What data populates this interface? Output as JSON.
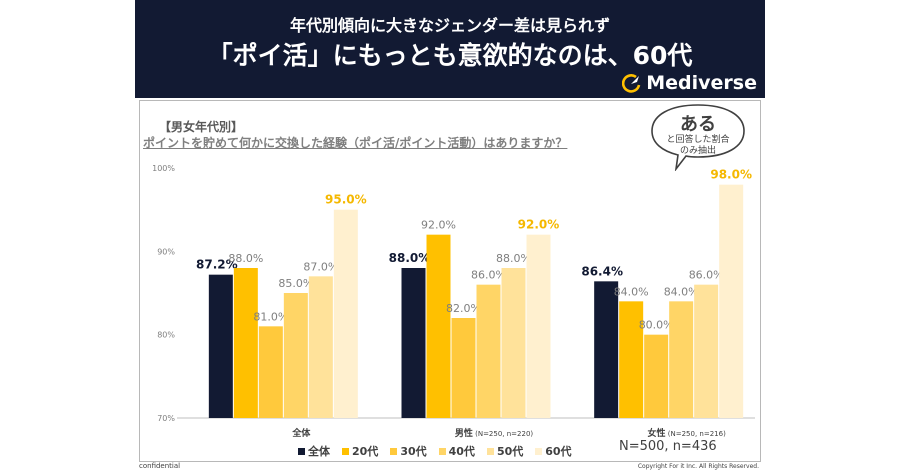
{
  "header": {
    "subtitle": "年代別傾向に大きなジェンダー差は見られず",
    "title": "「ポイ活」にもっとも意欲的なのは、60代",
    "brand": "Mediverse"
  },
  "section_tag": "【男女年代別】",
  "question": "ポイントを貯めて何かに交換した経験（ポイ活/ポイント活動）はありますか？",
  "bubble": {
    "main": "ある",
    "line1": "と回答した割合",
    "line2": "のみ抽出"
  },
  "sample_size": "N=500, n=436",
  "footer": {
    "left": "confidential",
    "right": "Copyright For it Inc. All Rights Reserved."
  },
  "colors": {
    "total": "#121a33",
    "20s": "#ffc000",
    "30s": "#ffc93c",
    "40s": "#ffd566",
    "50s": "#ffe29a",
    "60s": "#fff0cf",
    "highlight": "#f5b800"
  },
  "chart_data": {
    "type": "bar",
    "categories": [
      "全体",
      "男性",
      "女性"
    ],
    "category_notes": [
      "",
      "(N=250, n=220)",
      "(N=250, n=216)"
    ],
    "ylim": [
      70,
      100
    ],
    "yticks": [
      70,
      80,
      90,
      100
    ],
    "ytick_labels": [
      "70%",
      "80%",
      "90%",
      "100%"
    ],
    "series": [
      {
        "name": "全体",
        "values": [
          87.2,
          88.0,
          86.4
        ],
        "labels": [
          "87.2%",
          "88.0%",
          "86.4%"
        ]
      },
      {
        "name": "20代",
        "values": [
          88.0,
          92.0,
          84.0
        ],
        "labels": [
          "88.0%",
          "92.0%",
          "84.0%"
        ]
      },
      {
        "name": "30代",
        "values": [
          81.0,
          82.0,
          80.0
        ],
        "labels": [
          "81.0%",
          "82.0%",
          "80.0%"
        ]
      },
      {
        "name": "40代",
        "values": [
          85.0,
          86.0,
          84.0
        ],
        "labels": [
          "85.0%",
          "86.0%",
          "84.0%"
        ]
      },
      {
        "name": "50代",
        "values": [
          87.0,
          88.0,
          86.0
        ],
        "labels": [
          "87.0%",
          "88.0%",
          "86.0%"
        ]
      },
      {
        "name": "60代",
        "values": [
          95.0,
          92.0,
          98.0
        ],
        "labels": [
          "95.0%",
          "92.0%",
          "98.0%"
        ]
      }
    ],
    "legend_position": "bottom",
    "grid": false
  }
}
